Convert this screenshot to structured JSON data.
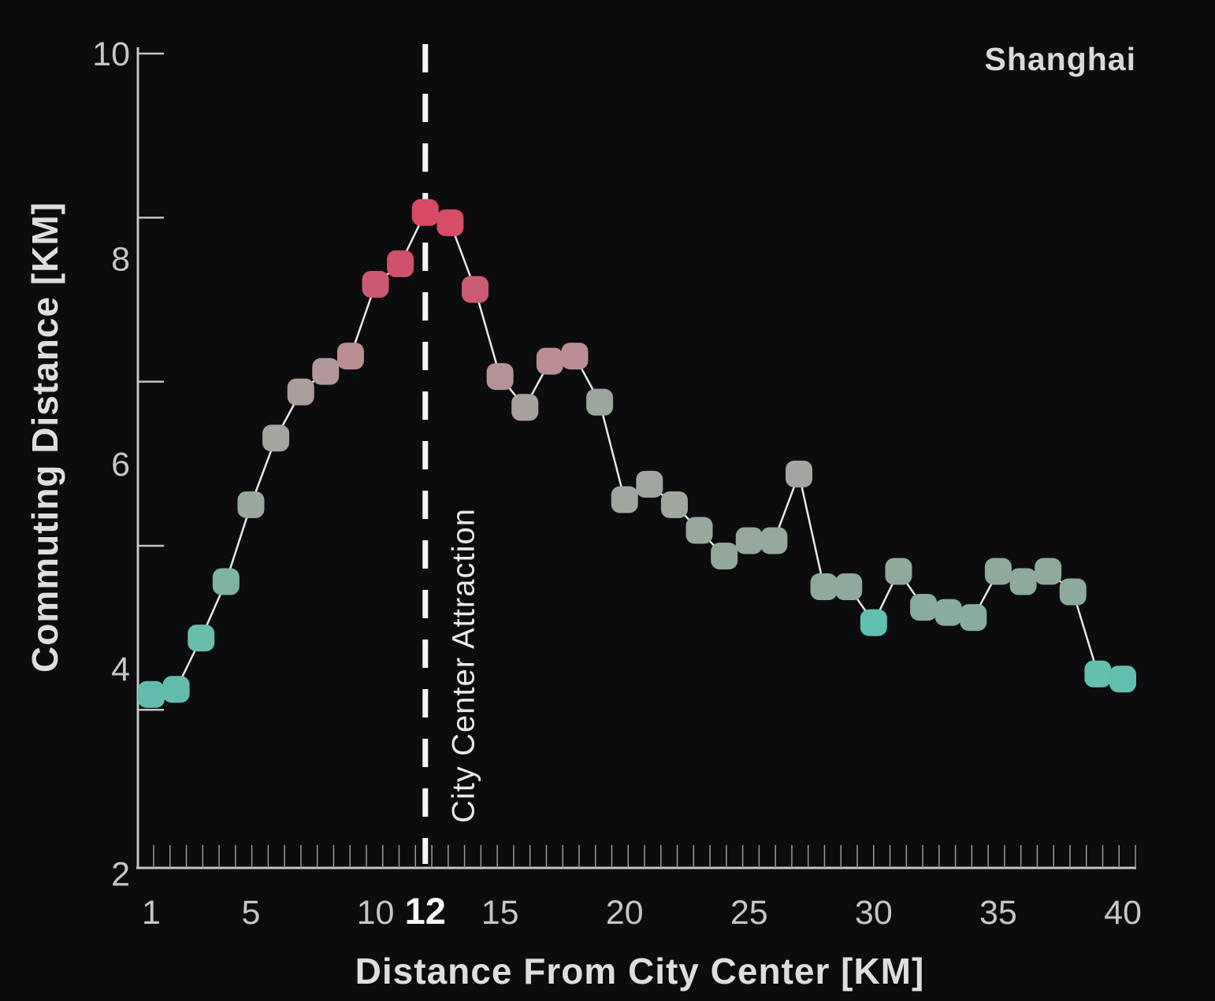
{
  "chart": {
    "city_label": "Shanghai",
    "y_title": "Commuting Distance [KM]",
    "x_title": "Distance From City Center [KM]",
    "annotation_label": "City Center Attraction",
    "colors": {
      "background": "#0c0c0e",
      "axis": "#c4c4c4",
      "minor_tick": "#9a9a9a",
      "tick_label": "#c6c6c6",
      "bold_tick_label": "#f7f7f7",
      "series_line": "#e9e9e9",
      "dashed_line": "#f5f5f5",
      "teal_low": "#62bfad",
      "sage_mid": "#8faa9d",
      "gray_mid": "#a2a6a0",
      "pink_high": "#bb8e94",
      "crimson_peak": "#d84a63"
    }
  },
  "chart_data": {
    "type": "line",
    "title": "Shanghai",
    "xlabel": "Distance From City Center [KM]",
    "ylabel": "Commuting Distance [KM]",
    "xlim": [
      1,
      40
    ],
    "ylim": [
      2,
      10
    ],
    "grid": false,
    "legend": false,
    "x_tick_labels": [
      "1",
      "5",
      "10",
      "12",
      "15",
      "20",
      "25",
      "30",
      "35",
      "40"
    ],
    "x_tick_values": [
      1,
      5,
      10,
      12,
      15,
      20,
      25,
      30,
      35,
      40
    ],
    "x_bold_tick": 12,
    "y_tick_labels": [
      "10",
      "8",
      "6",
      "4",
      "2"
    ],
    "y_label_values": [
      10,
      8,
      6,
      4,
      2
    ],
    "y_tick_marks": [
      10,
      8.4,
      6.8,
      5.2,
      3.6
    ],
    "vline_x": 12,
    "annotation": {
      "text": "City Center Attraction",
      "at_x": 12
    },
    "x": [
      1,
      2,
      3,
      4,
      5,
      6,
      7,
      8,
      9,
      10,
      11,
      12,
      13,
      14,
      15,
      16,
      17,
      18,
      19,
      20,
      21,
      22,
      23,
      24,
      25,
      26,
      27,
      28,
      29,
      30,
      31,
      32,
      33,
      34,
      35,
      36,
      37,
      38,
      39,
      40
    ],
    "values": [
      3.75,
      3.8,
      4.3,
      4.85,
      5.6,
      6.25,
      6.7,
      6.9,
      7.05,
      7.75,
      7.95,
      8.45,
      8.35,
      7.7,
      6.85,
      6.55,
      7.0,
      7.05,
      6.6,
      5.65,
      5.8,
      5.6,
      5.35,
      5.1,
      5.25,
      5.25,
      5.9,
      4.8,
      4.8,
      4.45,
      4.95,
      4.6,
      4.55,
      4.5,
      4.95,
      4.85,
      4.95,
      4.75,
      3.95,
      3.9
    ],
    "point_colors": [
      "#63bcab",
      "#63bcab",
      "#69bdad",
      "#7eb3a4",
      "#9aa8a0",
      "#a4a6a1",
      "#ab9f9d",
      "#b3989b",
      "#bb8e94",
      "#cb5970",
      "#d05169",
      "#d84a63",
      "#d64d66",
      "#ca5c72",
      "#b59399",
      "#a9a19f",
      "#bb8e95",
      "#bb8e95",
      "#9da69e",
      "#a0a6a0",
      "#a1a6a0",
      "#9fa79f",
      "#97a89d",
      "#92a89b",
      "#94a89c",
      "#94a89c",
      "#a3a6a1",
      "#8daa9c",
      "#8daa9c",
      "#5fc0b0",
      "#8faa9d",
      "#88ac9e",
      "#88ac9e",
      "#86ad9f",
      "#90a99d",
      "#8daa9c",
      "#90a99d",
      "#8cab9c",
      "#64bfad",
      "#62bfad"
    ]
  }
}
